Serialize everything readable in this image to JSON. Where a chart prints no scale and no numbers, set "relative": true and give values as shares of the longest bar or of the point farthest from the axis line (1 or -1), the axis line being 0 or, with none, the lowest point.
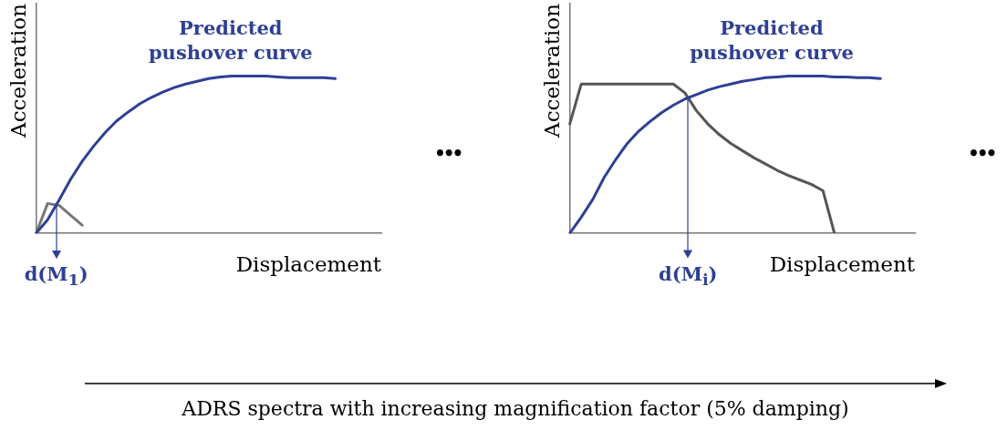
{
  "chart_data": [
    {
      "type": "line",
      "relative": true,
      "xlabel": "Displacement",
      "ylabel": "Acceleration",
      "categories": [
        null,
        null,
        null,
        null,
        null,
        null,
        null,
        null,
        null,
        null,
        null,
        null,
        null,
        null,
        null,
        null,
        null,
        null,
        null,
        null,
        null,
        null,
        null,
        null,
        null,
        null,
        null,
        null,
        null,
        null,
        null
      ],
      "series": [
        {
          "name": "Predicted pushover curve",
          "color": "#2e3f94",
          "values": [
            0,
            0.086,
            0.211,
            0.343,
            0.457,
            0.554,
            0.64,
            0.714,
            0.771,
            0.823,
            0.863,
            0.897,
            0.926,
            0.949,
            0.966,
            0.983,
            0.994,
            1,
            1,
            1,
            1,
            0.994,
            0.989,
            0.989,
            0.989,
            0.989,
            0.983,
            null,
            null,
            null,
            null
          ]
        },
        {
          "color": "#777777",
          "values": [
            0,
            0.189,
            0.177,
            0.114,
            0.051,
            null,
            null,
            null,
            null,
            null,
            null,
            null,
            null,
            null,
            null,
            null,
            null,
            null,
            null,
            null,
            null,
            null,
            null,
            null,
            null,
            null,
            null,
            null,
            null,
            null,
            null
          ]
        }
      ],
      "annotations": [
        "d(M$_{1}$)",
        "•••"
      ]
    },
    {
      "type": "line",
      "relative": true,
      "xlabel": "Displacement",
      "ylabel": "Acceleration",
      "categories": [
        null,
        null,
        null,
        null,
        null,
        null,
        null,
        null,
        null,
        null,
        null,
        null,
        null,
        null,
        null,
        null,
        null,
        null,
        null,
        null,
        null,
        null,
        null,
        null,
        null,
        null,
        null,
        null,
        null,
        null,
        null
      ],
      "series": [
        {
          "name": "Predicted pushover curve",
          "color": "#2e3f94",
          "values": [
            0,
            0.102,
            0.215,
            0.356,
            0.469,
            0.571,
            0.65,
            0.712,
            0.768,
            0.814,
            0.853,
            0.881,
            0.91,
            0.932,
            0.949,
            0.966,
            0.977,
            0.989,
            0.994,
            1,
            1,
            1,
            1,
            0.994,
            0.994,
            0.989,
            0.989,
            0.983,
            null,
            null,
            null
          ]
        },
        {
          "color": "#555555",
          "values": [
            0.695,
            0.949,
            0.949,
            0.949,
            0.949,
            0.949,
            0.949,
            0.949,
            0.949,
            0.949,
            0.893,
            0.78,
            0.695,
            0.627,
            0.571,
            0.525,
            0.48,
            0.441,
            0.401,
            0.367,
            0.339,
            0.311,
            0.271,
            0,
            null,
            null,
            null,
            null,
            null,
            null,
            null
          ]
        }
      ],
      "annotations": [
        "d(M$_{i}$)",
        "•••"
      ]
    },
    {
      "type": "other",
      "annotations": [
        "ADRS spectra with increasing magnification factor (5% damping)"
      ]
    }
  ]
}
